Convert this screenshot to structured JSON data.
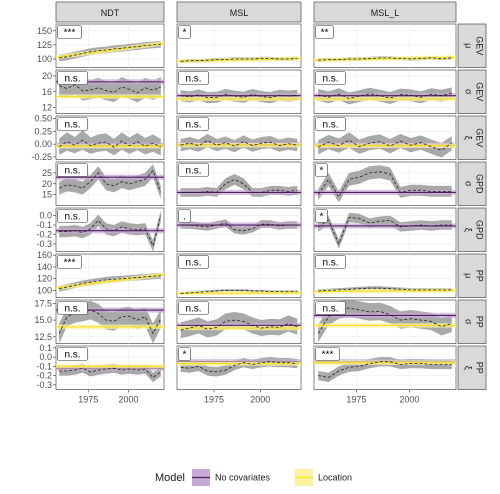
{
  "chart_data": {
    "type": "line",
    "columns": [
      "NDT",
      "MSL",
      "MSL_L"
    ],
    "x_ticks": [
      1975,
      2000
    ],
    "xlim": [
      1955,
      2022
    ],
    "legend": {
      "title": "Model",
      "placement": "bottom",
      "items": [
        {
          "label": "No covariates",
          "color": "#4b1f5e",
          "fill": "#c7aad4"
        },
        {
          "label": "Location",
          "color": "#f5e01a",
          "fill": "#fbf3a0"
        }
      ]
    },
    "colors": {
      "ribbon": "#8c8c8c",
      "strip_bg": "#d9d9d9",
      "grid": "#ebebeb"
    },
    "rows": [
      {
        "model": "GEV",
        "param": "μ",
        "ylim": [
          85,
          162
        ],
        "yticks": [
          100,
          125,
          150
        ],
        "ytick_labels": [
          "100",
          "125",
          "150"
        ],
        "sig": [
          "***",
          "*",
          "**"
        ],
        "none_level": [
          null,
          null,
          null
        ],
        "loc": [
          [
            103,
            128
          ],
          [
            96,
            101
          ],
          [
            98,
            103
          ]
        ],
        "est": [
          [
            102,
            104,
            107,
            110,
            113,
            115,
            116,
            118,
            119,
            121,
            122,
            124,
            125,
            126
          ],
          [
            96,
            97,
            97,
            98,
            99,
            99,
            100,
            100,
            100,
            101,
            101,
            100,
            100,
            101
          ],
          [
            98,
            99,
            99,
            100,
            100,
            101,
            102,
            102,
            101,
            100,
            101,
            102,
            101,
            102
          ]
        ],
        "band": [
          [
            6,
            6,
            6,
            6,
            6,
            6,
            6,
            6,
            6,
            6,
            6,
            6,
            6,
            6
          ],
          [
            3,
            3,
            3,
            3,
            3,
            3,
            3,
            3,
            3,
            3,
            3,
            3,
            3,
            3
          ],
          [
            3,
            3,
            3,
            3,
            3,
            3,
            3,
            3,
            3,
            3,
            3,
            3,
            3,
            3
          ]
        ]
      },
      {
        "model": "GEV",
        "param": "σ",
        "ylim": [
          10.5,
          21.5
        ],
        "yticks": [
          12,
          16,
          20
        ],
        "ytick_labels": [
          "12",
          "16",
          "20"
        ],
        "sig": [
          "n.s.",
          "n.s.",
          "n.s."
        ],
        "none_level": [
          18.5,
          15.0,
          15.0
        ],
        "loc": [
          [
            14.8,
            14.8
          ],
          [
            14.2,
            14.2
          ],
          [
            14.2,
            14.2
          ]
        ],
        "est": [
          [
            17.5,
            16.8,
            17.8,
            16.2,
            16.5,
            17.0,
            16.3,
            15.8,
            17.2,
            16.6,
            15.7,
            17.0,
            16.4,
            17.2
          ],
          [
            15.0,
            14.7,
            15.2,
            14.5,
            14.6,
            15.3,
            14.9,
            14.6,
            15.3,
            14.8,
            14.5,
            15.1,
            14.9,
            15.1
          ],
          [
            15.2,
            14.6,
            15.4,
            14.3,
            14.9,
            15.5,
            15.0,
            14.4,
            15.3,
            15.1,
            14.6,
            15.4,
            15.0,
            15.6
          ]
        ],
        "band": [
          [
            2.6,
            2.4,
            2.6,
            2.4,
            2.4,
            2.5,
            2.4,
            2.4,
            2.5,
            2.4,
            2.4,
            2.5,
            2.4,
            2.5
          ],
          [
            1.4,
            1.4,
            1.4,
            1.4,
            1.4,
            1.4,
            1.4,
            1.4,
            1.4,
            1.4,
            1.4,
            1.4,
            1.4,
            1.4
          ],
          [
            1.5,
            1.5,
            1.5,
            1.5,
            1.5,
            1.5,
            1.5,
            1.5,
            1.5,
            1.5,
            1.5,
            1.5,
            1.5,
            1.5
          ]
        ]
      },
      {
        "model": "GEV",
        "param": "ξ",
        "ylim": [
          -0.3,
          0.55
        ],
        "yticks": [
          -0.25,
          0.0,
          0.25,
          0.5
        ],
        "ytick_labels": [
          "-0.25",
          "0.00",
          "0.25",
          "0.50"
        ],
        "sig": [
          "n.s.",
          "n.s.",
          "n.s."
        ],
        "none_level": [
          -0.02,
          -0.01,
          -0.02
        ],
        "loc": [
          [
            -0.04,
            -0.04
          ],
          [
            -0.02,
            -0.02
          ],
          [
            -0.03,
            -0.03
          ]
        ],
        "est": [
          [
            -0.05,
            0.05,
            -0.02,
            0.08,
            -0.03,
            0.02,
            0.04,
            -0.06,
            0.06,
            -0.03,
            0.05,
            -0.04,
            0.02,
            -0.06
          ],
          [
            -0.02,
            0.02,
            -0.03,
            0.07,
            -0.02,
            0.03,
            -0.04,
            0.05,
            -0.03,
            0.02,
            0.04,
            -0.03,
            0.01,
            -0.02
          ],
          [
            -0.06,
            0.04,
            -0.03,
            0.08,
            -0.05,
            0.02,
            0.05,
            -0.04,
            0.06,
            -0.02,
            0.03,
            -0.05,
            -0.12,
            0.02
          ]
        ],
        "band": [
          [
            0.16,
            0.18,
            0.16,
            0.19,
            0.16,
            0.17,
            0.17,
            0.16,
            0.17,
            0.16,
            0.17,
            0.16,
            0.17,
            0.16
          ],
          [
            0.12,
            0.12,
            0.12,
            0.13,
            0.12,
            0.12,
            0.12,
            0.12,
            0.12,
            0.12,
            0.12,
            0.12,
            0.12,
            0.12
          ],
          [
            0.14,
            0.14,
            0.14,
            0.15,
            0.14,
            0.14,
            0.14,
            0.14,
            0.14,
            0.14,
            0.14,
            0.14,
            0.14,
            0.14
          ]
        ]
      },
      {
        "model": "GPD",
        "param": "σ",
        "ylim": [
          10,
          30
        ],
        "yticks": [
          15,
          20,
          25
        ],
        "ytick_labels": [
          "15",
          "20",
          "25"
        ],
        "sig": [
          "n.s.",
          "n.s.",
          "*"
        ],
        "none_level": [
          23.0,
          16.0,
          16.0
        ],
        "loc": [
          null,
          null,
          null
        ],
        "est": [
          [
            18.0,
            19.5,
            19.0,
            18.0,
            21.0,
            25.0,
            20.0,
            19.0,
            21.0,
            20.0,
            21.0,
            22.0,
            26.0,
            16.0
          ],
          [
            16.0,
            16.0,
            16.0,
            16.5,
            16.0,
            20.0,
            22.0,
            20.0,
            16.0,
            16.0,
            17.0,
            17.0,
            16.5,
            17.0
          ],
          [
            15.0,
            22.0,
            14.0,
            22.0,
            23.0,
            25.0,
            25.5,
            24.5,
            16.0,
            17.0,
            17.0,
            16.5,
            16.5,
            16.5
          ]
        ],
        "band": [
          [
            3.0,
            3.0,
            3.0,
            3.0,
            3.0,
            3.0,
            3.0,
            3.0,
            3.0,
            3.0,
            3.0,
            3.0,
            3.0,
            3.0
          ],
          [
            2.0,
            2.0,
            2.0,
            2.0,
            2.0,
            2.5,
            2.5,
            2.5,
            2.0,
            2.0,
            2.0,
            2.0,
            2.0,
            2.0
          ],
          [
            2.5,
            3.0,
            2.5,
            3.0,
            3.0,
            3.0,
            3.0,
            3.0,
            2.5,
            2.5,
            2.5,
            2.5,
            2.5,
            2.5
          ]
        ]
      },
      {
        "model": "GPD",
        "param": "ξ",
        "ylim": [
          -0.38,
          0.08
        ],
        "yticks": [
          -0.3,
          -0.2,
          -0.1,
          0.0
        ],
        "ytick_labels": [
          "-0.3",
          "-0.2",
          "-0.1",
          "0.0"
        ],
        "sig": [
          "n.s.",
          ".",
          "*"
        ],
        "none_level": [
          -0.16,
          -0.1,
          -0.11
        ],
        "loc": [
          null,
          null,
          null
        ],
        "est": [
          [
            -0.17,
            -0.17,
            -0.16,
            -0.18,
            -0.14,
            -0.05,
            -0.14,
            -0.16,
            -0.12,
            -0.14,
            -0.15,
            -0.14,
            -0.32,
            0.0
          ],
          [
            -0.1,
            -0.1,
            -0.11,
            -0.12,
            -0.1,
            -0.08,
            -0.15,
            -0.16,
            -0.14,
            -0.09,
            -0.09,
            -0.11,
            -0.1,
            -0.1
          ],
          [
            -0.12,
            -0.05,
            -0.3,
            -0.02,
            -0.03,
            -0.08,
            -0.06,
            -0.05,
            -0.12,
            -0.11,
            -0.1,
            -0.11,
            -0.1,
            -0.1
          ]
        ],
        "band": [
          [
            0.06,
            0.06,
            0.06,
            0.06,
            0.06,
            0.06,
            0.06,
            0.06,
            0.06,
            0.06,
            0.06,
            0.06,
            0.06,
            0.06
          ],
          [
            0.04,
            0.04,
            0.04,
            0.04,
            0.04,
            0.04,
            0.04,
            0.04,
            0.04,
            0.04,
            0.04,
            0.04,
            0.04,
            0.04
          ],
          [
            0.05,
            0.05,
            0.05,
            0.05,
            0.05,
            0.05,
            0.05,
            0.05,
            0.05,
            0.05,
            0.05,
            0.05,
            0.05,
            0.05
          ]
        ]
      },
      {
        "model": "PP",
        "param": "μ",
        "ylim": [
          88,
          162
        ],
        "yticks": [
          100,
          120,
          140,
          160
        ],
        "ytick_labels": [
          "100",
          "120",
          "140",
          "160"
        ],
        "sig": [
          "***",
          "n.s.",
          "n.s."
        ],
        "none_level": [
          null,
          null,
          null
        ],
        "loc": [
          [
            104,
            127
          ],
          [
            95,
            96
          ],
          [
            98,
            100
          ]
        ],
        "est": [
          [
            103,
            106,
            109,
            112,
            114,
            116,
            118,
            119,
            120,
            121,
            122,
            123,
            124,
            125
          ],
          [
            95,
            96,
            97,
            98,
            99,
            100,
            100,
            100,
            99,
            99,
            98,
            98,
            98,
            98
          ],
          [
            99,
            100,
            101,
            102,
            103,
            104,
            104,
            103,
            102,
            101,
            101,
            101,
            101,
            101
          ]
        ],
        "band": [
          [
            5,
            5,
            5,
            5,
            5,
            5,
            5,
            5,
            5,
            5,
            5,
            5,
            5,
            5
          ],
          [
            2,
            2,
            2,
            2,
            2,
            2,
            2,
            2,
            2,
            2,
            2,
            2,
            2,
            2
          ],
          [
            3,
            3,
            3,
            3,
            3,
            3,
            3,
            3,
            3,
            3,
            3,
            3,
            3,
            3
          ]
        ]
      },
      {
        "model": "PP",
        "param": "σ",
        "ylim": [
          11.5,
          18.0
        ],
        "yticks": [
          12.5,
          15.0,
          17.5
        ],
        "ytick_labels": [
          "12.5",
          "15.0",
          "17.5"
        ],
        "sig": [
          "n.s.",
          "n.s.",
          "n.s."
        ],
        "none_level": [
          16.5,
          14.2,
          15.7
        ],
        "loc": [
          [
            14.0,
            14.0
          ],
          [
            13.8,
            13.8
          ],
          [
            14.2,
            14.2
          ]
        ],
        "est": [
          [
            13.0,
            15.5,
            16.0,
            16.2,
            16.5,
            16.0,
            15.0,
            14.8,
            15.5,
            15.6,
            15.0,
            15.5,
            13.0,
            15.2
          ],
          [
            13.5,
            13.8,
            14.2,
            13.6,
            13.9,
            14.8,
            15.0,
            14.8,
            14.2,
            13.8,
            14.0,
            13.9,
            14.5,
            14.0
          ],
          [
            13.0,
            15.5,
            16.5,
            16.8,
            16.5,
            16.2,
            16.3,
            15.8,
            15.0,
            15.2,
            15.0,
            14.8,
            14.0,
            14.5
          ]
        ],
        "band": [
          [
            1.5,
            1.4,
            1.4,
            1.4,
            1.4,
            1.4,
            1.4,
            1.4,
            1.4,
            1.4,
            1.4,
            1.4,
            1.5,
            1.4
          ],
          [
            1.2,
            1.2,
            1.2,
            1.2,
            1.2,
            1.2,
            1.2,
            1.2,
            1.2,
            1.2,
            1.2,
            1.2,
            1.2,
            1.2
          ],
          [
            1.3,
            1.3,
            1.3,
            1.3,
            1.3,
            1.3,
            1.3,
            1.3,
            1.3,
            1.3,
            1.3,
            1.3,
            1.3,
            1.3
          ]
        ]
      },
      {
        "model": "PP",
        "param": "ξ",
        "ylim": [
          -0.35,
          0.12
        ],
        "yticks": [
          -0.3,
          -0.2,
          -0.1,
          0.0,
          0.1
        ],
        "ytick_labels": [
          "-0.3",
          "-0.2",
          "-0.1",
          "0.0",
          "0.1"
        ],
        "sig": [
          "n.s.",
          "*",
          "***"
        ],
        "none_level": [
          -0.12,
          -0.05,
          -0.05
        ],
        "loc": [
          [
            -0.1,
            -0.1
          ],
          [
            -0.07,
            -0.07
          ],
          [
            -0.06,
            -0.06
          ]
        ],
        "est": [
          [
            -0.15,
            -0.15,
            -0.14,
            -0.12,
            -0.16,
            -0.14,
            -0.13,
            -0.12,
            -0.14,
            -0.13,
            -0.14,
            -0.13,
            -0.22,
            -0.16
          ],
          [
            -0.11,
            -0.12,
            -0.1,
            -0.15,
            -0.16,
            -0.14,
            -0.09,
            -0.06,
            -0.08,
            -0.06,
            -0.05,
            -0.06,
            -0.06,
            -0.07
          ],
          [
            -0.2,
            -0.22,
            -0.15,
            -0.11,
            -0.1,
            -0.07,
            -0.05,
            -0.05,
            -0.08,
            -0.07,
            -0.07,
            -0.08,
            -0.08,
            -0.08
          ]
        ],
        "band": [
          [
            0.05,
            0.05,
            0.05,
            0.05,
            0.05,
            0.05,
            0.05,
            0.05,
            0.05,
            0.05,
            0.05,
            0.05,
            0.05,
            0.05
          ],
          [
            0.05,
            0.05,
            0.05,
            0.05,
            0.05,
            0.05,
            0.05,
            0.05,
            0.05,
            0.05,
            0.05,
            0.05,
            0.05,
            0.05
          ],
          [
            0.05,
            0.05,
            0.05,
            0.05,
            0.05,
            0.05,
            0.05,
            0.05,
            0.05,
            0.05,
            0.05,
            0.05,
            0.05,
            0.05
          ]
        ]
      }
    ]
  }
}
